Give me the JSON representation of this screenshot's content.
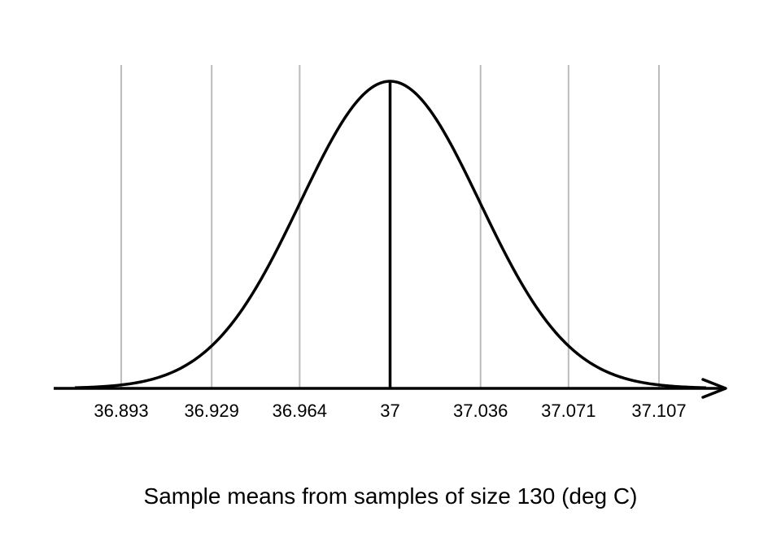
{
  "chart_data": {
    "type": "line",
    "title": "",
    "xlabel": "Sample means from samples of size 130 (deg C)",
    "ylabel": "",
    "distribution": "normal",
    "mean": 37,
    "std_dev": 0.0357,
    "xlim": [
      36.858,
      37.118
    ],
    "tick_values": [
      36.893,
      36.929,
      36.964,
      37,
      37.036,
      37.071,
      37.107
    ],
    "tick_labels": [
      "36.893",
      "36.929",
      "36.964",
      "37",
      "37.036",
      "37.071",
      "37.107"
    ],
    "reference_line_at": 37,
    "grid": "vertical lines at tick values",
    "colors": {
      "curve": "#000000",
      "grid": "#bbbbbb",
      "axis": "#000000",
      "reference_line": "#000000"
    }
  }
}
